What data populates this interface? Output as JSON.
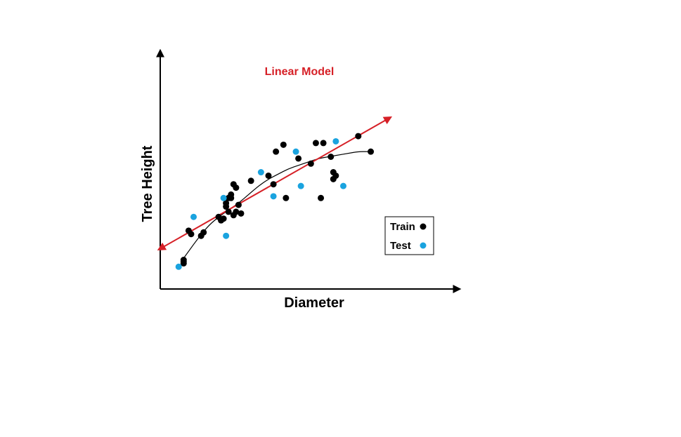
{
  "chart_data": {
    "type": "scatter",
    "title": "Linear Model",
    "xlabel": "Diameter",
    "ylabel": "Tree Height",
    "axis_ticks": "none",
    "grid": false,
    "legend_placement": "bottom-right",
    "xlim": [
      0,
      100
    ],
    "ylim": [
      0,
      100
    ],
    "colors": {
      "train": "#000000",
      "test": "#1aa3df",
      "linear_model": "#d62027",
      "curve": "#000000",
      "axes": "#000000"
    },
    "series": [
      {
        "name": "Train",
        "points": [
          [
            6,
            9
          ],
          [
            6,
            8
          ],
          [
            6,
            10
          ],
          [
            8,
            27
          ],
          [
            9,
            25
          ],
          [
            13,
            24
          ],
          [
            14,
            26
          ],
          [
            20,
            35
          ],
          [
            21,
            33
          ],
          [
            22,
            34
          ],
          [
            23,
            43
          ],
          [
            23,
            41
          ],
          [
            24,
            38
          ],
          [
            24,
            46
          ],
          [
            25,
            48
          ],
          [
            25,
            46
          ],
          [
            26,
            54
          ],
          [
            26,
            36
          ],
          [
            27,
            52
          ],
          [
            27,
            38
          ],
          [
            28,
            42
          ],
          [
            29,
            37
          ],
          [
            33,
            56
          ],
          [
            40,
            59
          ],
          [
            42,
            54
          ],
          [
            43,
            73
          ],
          [
            46,
            77
          ],
          [
            47,
            46
          ],
          [
            52,
            69
          ],
          [
            57,
            66
          ],
          [
            59,
            78
          ],
          [
            61,
            46
          ],
          [
            62,
            78
          ],
          [
            65,
            70
          ],
          [
            66,
            57
          ],
          [
            66,
            61
          ],
          [
            67,
            59
          ],
          [
            76,
            82
          ],
          [
            81,
            73
          ]
        ]
      },
      {
        "name": "Test",
        "points": [
          [
            4,
            6
          ],
          [
            10,
            35
          ],
          [
            22,
            46
          ],
          [
            23,
            24
          ],
          [
            37,
            61
          ],
          [
            42,
            47
          ],
          [
            51,
            73
          ],
          [
            53,
            53
          ],
          [
            67,
            79
          ],
          [
            70,
            53
          ]
        ]
      }
    ],
    "lines": [
      {
        "id": "linear_model",
        "type": "straight_double_arrow",
        "points": [
          [
            -4,
            16
          ],
          [
            89,
            93
          ]
        ]
      },
      {
        "id": "fitted_curve",
        "type": "smooth",
        "points": [
          [
            5,
            9
          ],
          [
            8,
            15
          ],
          [
            12,
            23
          ],
          [
            16,
            30
          ],
          [
            20,
            35
          ],
          [
            24,
            39
          ],
          [
            28,
            43
          ],
          [
            32,
            48
          ],
          [
            36,
            53
          ],
          [
            40,
            57
          ],
          [
            44,
            60
          ],
          [
            48,
            63
          ],
          [
            52,
            65
          ],
          [
            56,
            67
          ],
          [
            60,
            69
          ],
          [
            64,
            70
          ],
          [
            68,
            71
          ],
          [
            72,
            72
          ],
          [
            76,
            73
          ],
          [
            80,
            73
          ]
        ]
      }
    ],
    "legend": [
      {
        "label": "Train",
        "color": "#000000"
      },
      {
        "label": "Test",
        "color": "#1aa3df"
      }
    ]
  }
}
